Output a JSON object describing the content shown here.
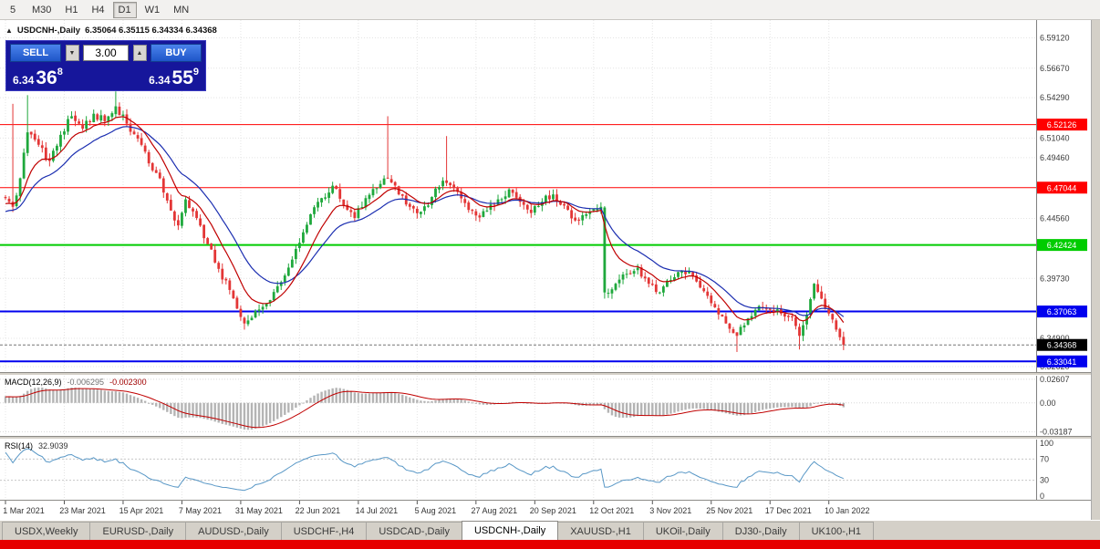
{
  "colors": {
    "bull": "#1fa83c",
    "bear": "#e33636",
    "ma_fast": "#c00000",
    "ma_slow": "#1a2db0",
    "macd_hist": "#b4b4b4",
    "macd_signal": "#c00000",
    "rsi": "#5897c6",
    "grid": "#e4e4e4",
    "axis_text": "#3a3a3a"
  },
  "toolbar": {
    "timeframes": [
      {
        "label": "5",
        "active": false
      },
      {
        "label": "M30",
        "active": false
      },
      {
        "label": "H1",
        "active": false
      },
      {
        "label": "H4",
        "active": false
      },
      {
        "label": "D1",
        "active": true
      },
      {
        "label": "W1",
        "active": false
      },
      {
        "label": "MN",
        "active": false
      }
    ]
  },
  "chart": {
    "collapse_icon": "▲",
    "symbol": "USDCNH-,Daily",
    "ohlc": "6.35064 6.35115 6.34334 6.34368",
    "trade": {
      "sell": "SELL",
      "buy": "BUY",
      "volume": "3.00",
      "spin_down": "▼",
      "spin_up": "▲",
      "bid_main": "6.34",
      "bid_big": "36",
      "bid_sup": "8",
      "ask_main": "6.34",
      "ask_big": "55",
      "ask_sup": "9"
    },
    "levels": [
      {
        "price": 6.52126,
        "label": "6.52126",
        "color": "#ff0000",
        "width": 1
      },
      {
        "price": 6.47044,
        "label": "6.47044",
        "color": "#ff0000",
        "width": 1
      },
      {
        "price": 6.42424,
        "label": "6.42424",
        "color": "#00cc00",
        "width": 2
      },
      {
        "price": 6.37063,
        "label": "6.37063",
        "color": "#0000ee",
        "width": 2
      },
      {
        "price": 6.33041,
        "label": "6.33041",
        "color": "#0000ee",
        "width": 2
      }
    ],
    "current": {
      "price": 6.34368,
      "label": "6.34368",
      "color": "#000000"
    },
    "y_ticks": [
      {
        "price": 6.5912,
        "label": "6.59120"
      },
      {
        "price": 6.5667,
        "label": "6.56670"
      },
      {
        "price": 6.5429,
        "label": "6.54290"
      },
      {
        "price": 6.5104,
        "label": "6.51040"
      },
      {
        "price": 6.4946,
        "label": "6.49460"
      },
      {
        "price": 6.4456,
        "label": "6.44560"
      },
      {
        "price": 6.3973,
        "label": "6.39730"
      },
      {
        "price": 6.349,
        "label": "6.34900"
      },
      {
        "price": 6.3262,
        "label": "6.32620"
      }
    ]
  },
  "chart_data": {
    "type": "candlestick",
    "symbol": "USDCNH",
    "period": "Daily",
    "count": 229,
    "y_range": [
      6.3218,
      6.6055
    ],
    "close_anchors": [
      [
        0,
        6.462
      ],
      [
        2,
        6.455
      ],
      [
        4,
        6.478
      ],
      [
        6,
        6.515
      ],
      [
        9,
        6.505
      ],
      [
        12,
        6.492
      ],
      [
        15,
        6.513
      ],
      [
        18,
        6.528
      ],
      [
        21,
        6.518
      ],
      [
        24,
        6.53
      ],
      [
        27,
        6.524
      ],
      [
        30,
        6.536
      ],
      [
        33,
        6.522
      ],
      [
        36,
        6.51
      ],
      [
        39,
        6.49
      ],
      [
        42,
        6.478
      ],
      [
        45,
        6.452
      ],
      [
        47,
        6.44
      ],
      [
        49,
        6.461
      ],
      [
        52,
        6.446
      ],
      [
        55,
        6.425
      ],
      [
        58,
        6.405
      ],
      [
        61,
        6.388
      ],
      [
        63,
        6.373
      ],
      [
        65,
        6.361
      ],
      [
        68,
        6.371
      ],
      [
        71,
        6.377
      ],
      [
        74,
        6.391
      ],
      [
        77,
        6.406
      ],
      [
        80,
        6.426
      ],
      [
        83,
        6.449
      ],
      [
        86,
        6.462
      ],
      [
        89,
        6.472
      ],
      [
        92,
        6.456
      ],
      [
        95,
        6.446
      ],
      [
        98,
        6.462
      ],
      [
        101,
        6.47
      ],
      [
        104,
        6.478
      ],
      [
        107,
        6.465
      ],
      [
        110,
        6.455
      ],
      [
        113,
        6.451
      ],
      [
        116,
        6.463
      ],
      [
        119,
        6.476
      ],
      [
        122,
        6.47
      ],
      [
        125,
        6.458
      ],
      [
        128,
        6.448
      ],
      [
        131,
        6.452
      ],
      [
        134,
        6.461
      ],
      [
        137,
        6.469
      ],
      [
        140,
        6.459
      ],
      [
        143,
        6.45
      ],
      [
        146,
        6.459
      ],
      [
        149,
        6.465
      ],
      [
        152,
        6.456
      ],
      [
        155,
        6.444
      ],
      [
        158,
        6.449
      ],
      [
        161,
        6.453
      ],
      [
        162,
        6.455
      ],
      [
        163,
        6.386
      ],
      [
        166,
        6.393
      ],
      [
        169,
        6.401
      ],
      [
        172,
        6.406
      ],
      [
        175,
        6.393
      ],
      [
        178,
        6.386
      ],
      [
        181,
        6.396
      ],
      [
        184,
        6.403
      ],
      [
        187,
        6.399
      ],
      [
        190,
        6.387
      ],
      [
        193,
        6.374
      ],
      [
        196,
        6.361
      ],
      [
        199,
        6.351
      ],
      [
        202,
        6.365
      ],
      [
        205,
        6.375
      ],
      [
        208,
        6.372
      ],
      [
        211,
        6.369
      ],
      [
        214,
        6.366
      ],
      [
        216,
        6.351
      ],
      [
        218,
        6.368
      ],
      [
        220,
        6.393
      ],
      [
        222,
        6.381
      ],
      [
        224,
        6.369
      ],
      [
        226,
        6.356
      ],
      [
        228,
        6.3437
      ]
    ],
    "forced_wicks": [
      {
        "i": 2,
        "h": 6.538
      },
      {
        "i": 6,
        "h": 6.545
      },
      {
        "i": 30,
        "h": 6.548
      },
      {
        "i": 65,
        "l": 6.356
      },
      {
        "i": 104,
        "h": 6.528
      },
      {
        "i": 120,
        "h": 6.512
      },
      {
        "i": 163,
        "l": 6.381
      },
      {
        "i": 199,
        "l": 6.338
      },
      {
        "i": 216,
        "l": 6.34
      },
      {
        "i": 228,
        "l": 6.3395
      }
    ],
    "bull_override": [
      163
    ],
    "warmup": {
      "bars": 30,
      "start": 6.425,
      "end": 6.462
    },
    "ma_fast_period": 10,
    "ma_slow_period": 21,
    "x_tick_indices": [
      0,
      16,
      32,
      48,
      64,
      80,
      96,
      112,
      128,
      144,
      160,
      176,
      192,
      208,
      224
    ],
    "x_tick_labels": [
      "1 Mar 2021",
      "23 Mar 2021",
      "15 Apr 2021",
      "7 May 2021",
      "31 May 2021",
      "22 Jun 2021",
      "14 Jul 2021",
      "5 Aug 2021",
      "27 Aug 2021",
      "20 Sep 2021",
      "12 Oct 2021",
      "3 Nov 2021",
      "25 Nov 2021",
      "17 Dec 2021",
      "10 Jan 2022"
    ]
  },
  "macd": {
    "title": "MACD(12,26,9)",
    "value1": "-0.006295",
    "value2": "-0.002300",
    "params": [
      12,
      26,
      9
    ],
    "range": [
      -0.0365,
      0.03
    ],
    "axis": [
      {
        "v": 0.02607,
        "label": "0.02607"
      },
      {
        "v": 0,
        "label": "0.00"
      },
      {
        "v": -0.03187,
        "label": "-0.03187"
      }
    ]
  },
  "rsi": {
    "title": "RSI(14)",
    "value": "32.9039",
    "period": 14,
    "levels": [
      70,
      30
    ],
    "axis": [
      {
        "v": 100,
        "label": "100"
      },
      {
        "v": 70,
        "label": "70"
      },
      {
        "v": 30,
        "label": "30"
      },
      {
        "v": 0,
        "label": "0"
      }
    ]
  },
  "tabs": [
    {
      "label": "USDX,Weekly",
      "active": false
    },
    {
      "label": "EURUSD-,Daily",
      "active": false
    },
    {
      "label": "AUDUSD-,Daily",
      "active": false
    },
    {
      "label": "USDCHF-,H4",
      "active": false
    },
    {
      "label": "USDCAD-,Daily",
      "active": false
    },
    {
      "label": "USDCNH-,Daily",
      "active": true
    },
    {
      "label": "XAUUSD-,H1",
      "active": false
    },
    {
      "label": "UKOil-,Daily",
      "active": false
    },
    {
      "label": "DJ30-,Daily",
      "active": false
    },
    {
      "label": "UK100-,H1",
      "active": false
    }
  ]
}
